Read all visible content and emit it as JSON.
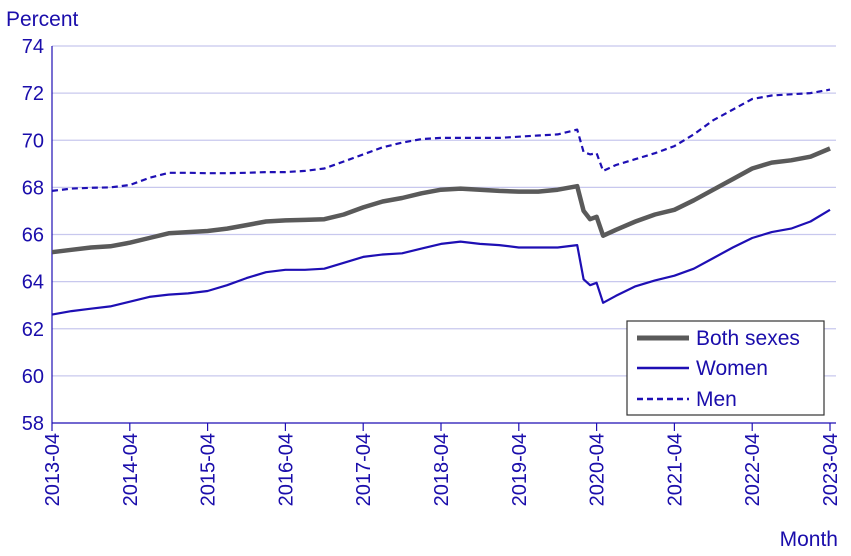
{
  "chart_data": {
    "type": "line",
    "ylabel": "Percent",
    "xlabel": "Month",
    "ylim": [
      58,
      74
    ],
    "yticks": [
      58,
      60,
      62,
      64,
      66,
      68,
      70,
      72,
      74
    ],
    "xticks": [
      "2013-04",
      "2014-04",
      "2015-04",
      "2016-04",
      "2017-04",
      "2018-04",
      "2019-04",
      "2020-04",
      "2021-04",
      "2022-04",
      "2023-04"
    ],
    "grid": "horizontal",
    "legend_position": "bottom-right",
    "colors": {
      "axis_text": "#1a0dab",
      "gridline": "#c8c8ee",
      "both": "#5a5a5a",
      "women": "#1e0fb4",
      "men": "#1e0fb4"
    },
    "series": [
      {
        "name": "Both sexes",
        "style": "solid-thick",
        "color": "#5a5a5a",
        "points": [
          [
            "2013-04",
            65.25
          ],
          [
            "2013-07",
            65.35
          ],
          [
            "2013-10",
            65.45
          ],
          [
            "2014-01",
            65.5
          ],
          [
            "2014-04",
            65.65
          ],
          [
            "2014-07",
            65.85
          ],
          [
            "2014-10",
            66.05
          ],
          [
            "2015-01",
            66.1
          ],
          [
            "2015-04",
            66.15
          ],
          [
            "2015-07",
            66.25
          ],
          [
            "2015-10",
            66.4
          ],
          [
            "2016-01",
            66.55
          ],
          [
            "2016-04",
            66.6
          ],
          [
            "2016-07",
            66.62
          ],
          [
            "2016-10",
            66.65
          ],
          [
            "2017-01",
            66.85
          ],
          [
            "2017-04",
            67.15
          ],
          [
            "2017-07",
            67.4
          ],
          [
            "2017-10",
            67.55
          ],
          [
            "2018-01",
            67.75
          ],
          [
            "2018-04",
            67.9
          ],
          [
            "2018-07",
            67.95
          ],
          [
            "2018-10",
            67.9
          ],
          [
            "2019-01",
            67.85
          ],
          [
            "2019-04",
            67.82
          ],
          [
            "2019-07",
            67.82
          ],
          [
            "2019-10",
            67.9
          ],
          [
            "2020-01",
            68.05
          ],
          [
            "2020-02",
            67.0
          ],
          [
            "2020-03",
            66.65
          ],
          [
            "2020-04",
            66.75
          ],
          [
            "2020-05",
            65.95
          ],
          [
            "2020-07",
            66.2
          ],
          [
            "2020-10",
            66.55
          ],
          [
            "2021-01",
            66.85
          ],
          [
            "2021-04",
            67.05
          ],
          [
            "2021-07",
            67.45
          ],
          [
            "2021-10",
            67.9
          ],
          [
            "2022-01",
            68.35
          ],
          [
            "2022-04",
            68.8
          ],
          [
            "2022-07",
            69.05
          ],
          [
            "2022-10",
            69.15
          ],
          [
            "2023-01",
            69.3
          ],
          [
            "2023-04",
            69.65
          ]
        ]
      },
      {
        "name": "Women",
        "style": "solid",
        "color": "#1e0fb4",
        "points": [
          [
            "2013-04",
            62.6
          ],
          [
            "2013-07",
            62.75
          ],
          [
            "2013-10",
            62.85
          ],
          [
            "2014-01",
            62.95
          ],
          [
            "2014-04",
            63.15
          ],
          [
            "2014-07",
            63.35
          ],
          [
            "2014-10",
            63.45
          ],
          [
            "2015-01",
            63.5
          ],
          [
            "2015-04",
            63.6
          ],
          [
            "2015-07",
            63.85
          ],
          [
            "2015-10",
            64.15
          ],
          [
            "2016-01",
            64.4
          ],
          [
            "2016-04",
            64.5
          ],
          [
            "2016-07",
            64.5
          ],
          [
            "2016-10",
            64.55
          ],
          [
            "2017-01",
            64.8
          ],
          [
            "2017-04",
            65.05
          ],
          [
            "2017-07",
            65.15
          ],
          [
            "2017-10",
            65.2
          ],
          [
            "2018-01",
            65.4
          ],
          [
            "2018-04",
            65.6
          ],
          [
            "2018-07",
            65.7
          ],
          [
            "2018-10",
            65.6
          ],
          [
            "2019-01",
            65.55
          ],
          [
            "2019-04",
            65.45
          ],
          [
            "2019-07",
            65.45
          ],
          [
            "2019-10",
            65.45
          ],
          [
            "2020-01",
            65.55
          ],
          [
            "2020-02",
            64.1
          ],
          [
            "2020-03",
            63.85
          ],
          [
            "2020-04",
            63.95
          ],
          [
            "2020-05",
            63.1
          ],
          [
            "2020-07",
            63.4
          ],
          [
            "2020-10",
            63.8
          ],
          [
            "2021-01",
            64.05
          ],
          [
            "2021-04",
            64.25
          ],
          [
            "2021-07",
            64.55
          ],
          [
            "2021-10",
            65.0
          ],
          [
            "2022-01",
            65.45
          ],
          [
            "2022-04",
            65.85
          ],
          [
            "2022-07",
            66.1
          ],
          [
            "2022-10",
            66.25
          ],
          [
            "2023-01",
            66.55
          ],
          [
            "2023-04",
            67.05
          ]
        ]
      },
      {
        "name": "Men",
        "style": "dashed",
        "color": "#1e0fb4",
        "points": [
          [
            "2013-04",
            67.85
          ],
          [
            "2013-07",
            67.95
          ],
          [
            "2013-10",
            67.98
          ],
          [
            "2014-01",
            68.0
          ],
          [
            "2014-04",
            68.1
          ],
          [
            "2014-07",
            68.4
          ],
          [
            "2014-10",
            68.62
          ],
          [
            "2015-01",
            68.62
          ],
          [
            "2015-04",
            68.6
          ],
          [
            "2015-07",
            68.6
          ],
          [
            "2015-10",
            68.62
          ],
          [
            "2016-01",
            68.65
          ],
          [
            "2016-04",
            68.65
          ],
          [
            "2016-07",
            68.7
          ],
          [
            "2016-10",
            68.8
          ],
          [
            "2017-01",
            69.1
          ],
          [
            "2017-04",
            69.4
          ],
          [
            "2017-07",
            69.7
          ],
          [
            "2017-10",
            69.9
          ],
          [
            "2018-01",
            70.05
          ],
          [
            "2018-04",
            70.1
          ],
          [
            "2018-07",
            70.1
          ],
          [
            "2018-10",
            70.1
          ],
          [
            "2019-01",
            70.1
          ],
          [
            "2019-04",
            70.15
          ],
          [
            "2019-07",
            70.2
          ],
          [
            "2019-10",
            70.25
          ],
          [
            "2020-01",
            70.45
          ],
          [
            "2020-02",
            69.5
          ],
          [
            "2020-03",
            69.4
          ],
          [
            "2020-04",
            69.45
          ],
          [
            "2020-05",
            68.7
          ],
          [
            "2020-07",
            68.95
          ],
          [
            "2020-10",
            69.2
          ],
          [
            "2021-01",
            69.45
          ],
          [
            "2021-04",
            69.75
          ],
          [
            "2021-07",
            70.25
          ],
          [
            "2021-10",
            70.85
          ],
          [
            "2022-01",
            71.3
          ],
          [
            "2022-04",
            71.75
          ],
          [
            "2022-07",
            71.9
          ],
          [
            "2022-10",
            71.95
          ],
          [
            "2023-01",
            72.0
          ],
          [
            "2023-04",
            72.15
          ]
        ]
      }
    ]
  }
}
